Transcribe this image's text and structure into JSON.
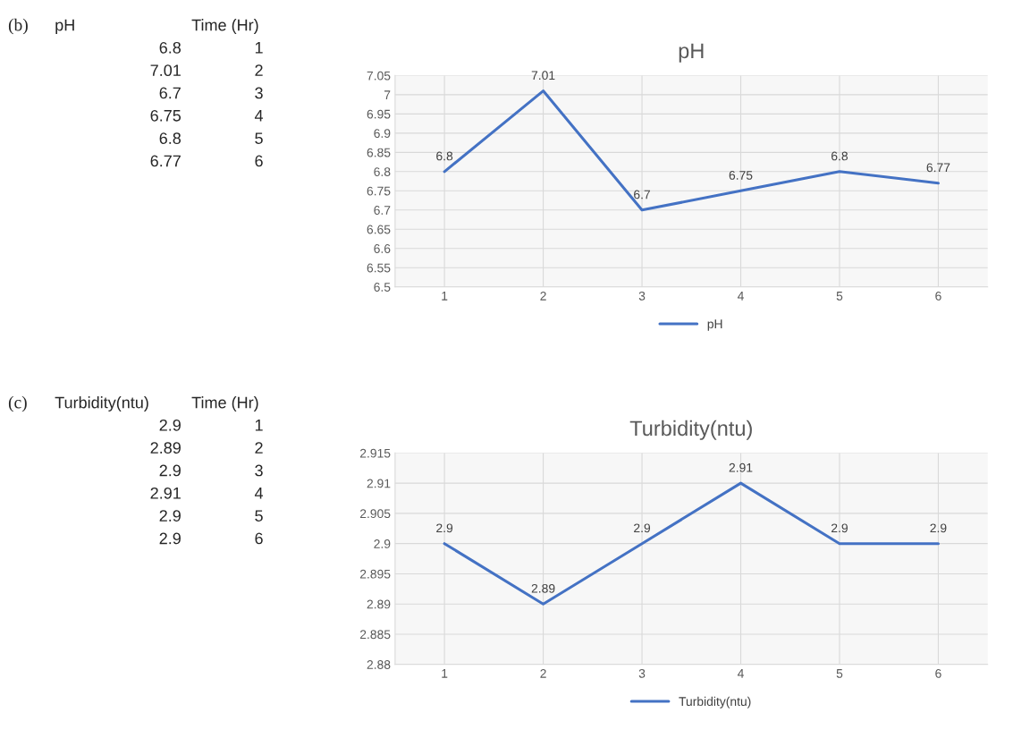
{
  "chart_data": [
    {
      "type": "line",
      "title": "pH",
      "annotations": [
        "(b)",
        "Time (Hr)",
        "6.8",
        "7.01",
        "6.7",
        "6.75",
        "6.8",
        "6.77"
      ],
      "categories": [
        "1",
        "2",
        "3",
        "4",
        "5",
        "6"
      ],
      "series": [
        {
          "name": "pH",
          "color": "#4472c4",
          "values": [
            6.8,
            7.01,
            6.7,
            6.75,
            6.8,
            6.77
          ]
        }
      ],
      "ylim": [
        6.5,
        7.05
      ],
      "yticks": [
        6.5,
        6.55,
        6.6,
        6.65,
        6.7,
        6.75,
        6.8,
        6.85,
        6.9,
        6.95,
        7,
        7.05
      ],
      "data_labels": true,
      "grid": true,
      "legend": "bottom",
      "marker": "none",
      "line_style": "solid"
    },
    {
      "type": "line",
      "title": "Turbidity(ntu)",
      "annotations": [
        "(c)",
        "Time (Hr)",
        "2.9",
        "2.89",
        "2.9",
        "2.91",
        "2.9",
        "2.9"
      ],
      "categories": [
        "1",
        "2",
        "3",
        "4",
        "5",
        "6"
      ],
      "series": [
        {
          "name": "Turbidity(ntu)",
          "color": "#4472c4",
          "values": [
            2.9,
            2.89,
            2.9,
            2.91,
            2.9,
            2.9
          ]
        }
      ],
      "ylim": [
        2.88,
        2.915
      ],
      "yticks": [
        2.88,
        2.885,
        2.89,
        2.895,
        2.9,
        2.905,
        2.91,
        2.915
      ],
      "data_labels": true,
      "grid": true,
      "legend": "bottom",
      "marker": "none",
      "line_style": "solid"
    }
  ]
}
